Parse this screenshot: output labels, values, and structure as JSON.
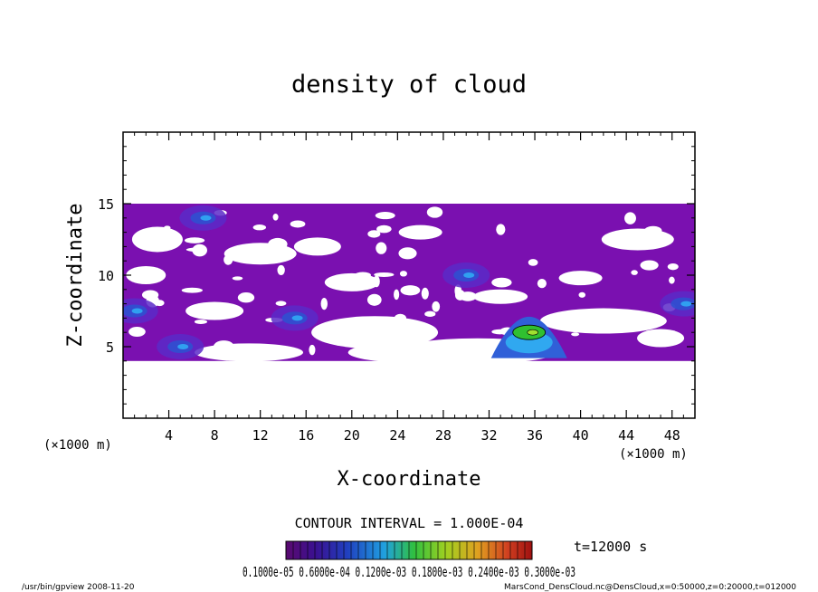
{
  "chart_data": {
    "type": "heatmap",
    "title": "density of cloud",
    "xlabel": "X-coordinate",
    "ylabel": "Z-coordinate",
    "x_unit": "(×1000 m)",
    "y_unit": "(×1000 m)",
    "xlim": [
      0,
      50
    ],
    "ylim": [
      0,
      20
    ],
    "x_ticks": [
      "4",
      "8",
      "12",
      "16",
      "20",
      "24",
      "28",
      "32",
      "36",
      "40",
      "44",
      "48"
    ],
    "y_ticks": [
      "5",
      "10",
      "15"
    ],
    "contour_interval": "CONTOUR INTERVAL = 1.000E-04",
    "time_label": "t=12000 s",
    "colorbar_labels": "0.1000e-05  0.6000e-04  0.1200e-03  0.1800e-03  0.2400e-03  0.3000e-03",
    "cloud_regions": [
      {
        "kind": "main-layer",
        "x_start": 0,
        "x_end": 50,
        "z_bottom": 4,
        "z_top": 15
      },
      {
        "kind": "dense-core",
        "x_center": 35.5,
        "z_center": 6,
        "value_level": "high"
      },
      {
        "kind": "dense-patch",
        "x_center": 7,
        "z_center": 14,
        "value_level": "medium"
      },
      {
        "kind": "dense-patch",
        "x_center": 1,
        "z_center": 7.5,
        "value_level": "medium"
      },
      {
        "kind": "dense-patch",
        "x_center": 49,
        "z_center": 8,
        "value_level": "medium"
      },
      {
        "kind": "dense-patch",
        "x_center": 5,
        "z_center": 5,
        "value_level": "medium"
      },
      {
        "kind": "dense-patch",
        "x_center": 15,
        "z_center": 7,
        "value_level": "medium"
      },
      {
        "kind": "dense-patch",
        "x_center": 30,
        "z_center": 10,
        "value_level": "medium"
      }
    ],
    "colors": {
      "low": "#7a10b0",
      "mid": "#3050d0",
      "high": "#30c030",
      "peak": "#e03030"
    }
  },
  "footer": {
    "program": "/usr/bin/gpview   2008-11-20",
    "source": "MarsCond_DensCloud.nc@DensCloud,x=0:50000,z=0:20000,t=012000"
  }
}
